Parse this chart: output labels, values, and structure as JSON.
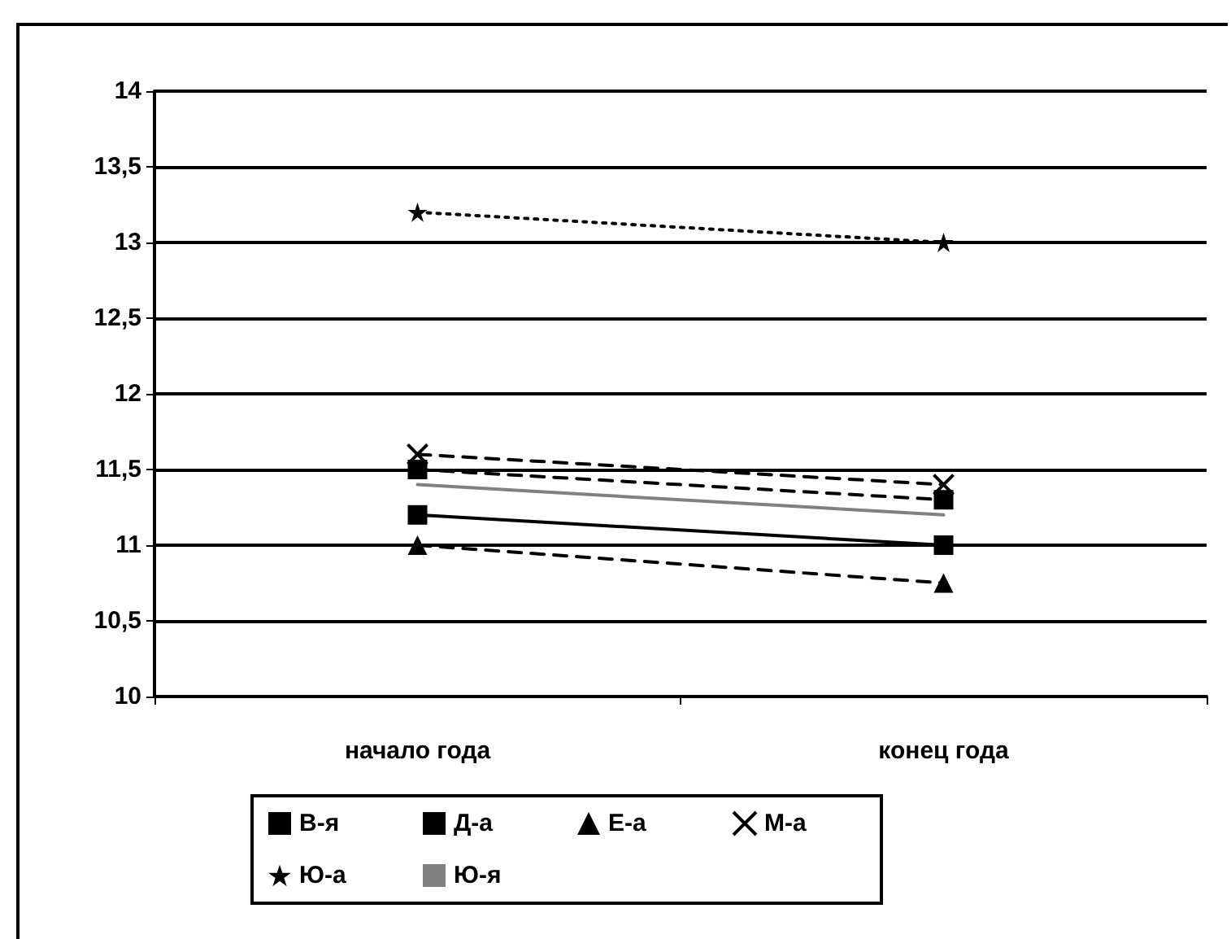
{
  "chart_data": {
    "type": "line",
    "categories": [
      "начало года",
      "конец года"
    ],
    "series": [
      {
        "name": "В-я",
        "color": "#000000",
        "values": [
          11.2,
          11.0
        ],
        "marker": "square",
        "line_style": "solid"
      },
      {
        "name": "Д-а",
        "color": "#000000",
        "values": [
          11.5,
          11.3
        ],
        "marker": "square",
        "line_style": "dashed"
      },
      {
        "name": "Е-а",
        "color": "#000000",
        "values": [
          11.0,
          10.75
        ],
        "marker": "triangle",
        "line_style": "dashed"
      },
      {
        "name": "М-а",
        "color": "#000000",
        "values": [
          11.6,
          11.4
        ],
        "marker": "cross",
        "line_style": "dashed"
      },
      {
        "name": "Ю-а",
        "color": "#000000",
        "values": [
          13.2,
          13.0
        ],
        "marker": "star",
        "line_style": "dotted"
      },
      {
        "name": "Ю-я",
        "color": "#808080",
        "values": [
          11.4,
          11.2
        ],
        "marker": "none",
        "line_style": "solid"
      }
    ],
    "ylim": [
      10,
      14
    ],
    "yticks": [
      10,
      {
        "value": 10.5,
        "label": "10,5"
      },
      11,
      {
        "value": 11.5,
        "label": "11,5"
      },
      12,
      {
        "value": 12.5,
        "label": "12,5"
      },
      13,
      {
        "value": 13.5,
        "label": "13,5"
      },
      14
    ],
    "grid": "y",
    "legend": "bottom"
  }
}
